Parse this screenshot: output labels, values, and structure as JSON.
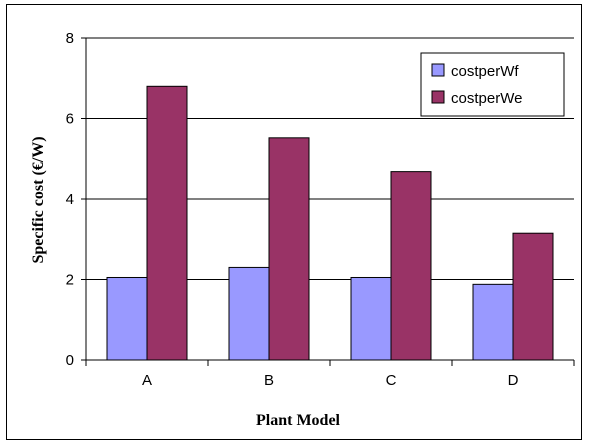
{
  "chart_data": {
    "type": "bar",
    "categories": [
      "A",
      "B",
      "C",
      "D"
    ],
    "series": [
      {
        "name": "costperWf",
        "values": [
          2.05,
          2.3,
          2.05,
          1.88
        ],
        "color": "#9999ff"
      },
      {
        "name": "costperWe",
        "values": [
          6.8,
          5.52,
          4.68,
          3.15
        ],
        "color": "#993366"
      }
    ],
    "title": "",
    "xlabel": "Plant Model",
    "ylabel": "Specific cost (€/W)",
    "ylim": [
      0,
      8
    ],
    "yticks": [
      "0",
      "2",
      "4",
      "6",
      "8"
    ],
    "grid": true,
    "legend_position": "top-right"
  }
}
